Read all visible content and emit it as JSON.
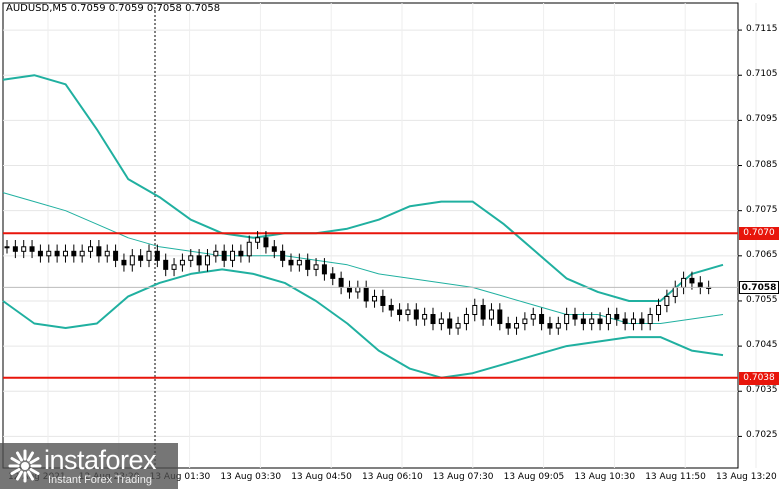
{
  "header": {
    "symbol_timeframe": "AUDUSD,M5",
    "ohlc": "0.7059 0.7059 0.7058 0.7058"
  },
  "watermark": {
    "brand": "instaforex",
    "tagline": "Instant Forex Trading",
    "logo_icon": "sunburst-logo-icon"
  },
  "price_tags": {
    "resistance": "0.7070",
    "support": "0.7038",
    "current": "0.7058"
  },
  "colors": {
    "band": "#20b0a0",
    "middle": "#20b0a0",
    "level": "#e8150b",
    "candle": "#000000"
  },
  "chart_data": {
    "type": "candlestick",
    "ylim": [
      0.7018,
      0.7121
    ],
    "y_ticks": [
      "0.7115",
      "0.7105",
      "0.7095",
      "0.7085",
      "0.7075",
      "0.7065",
      "0.7055",
      "0.7045",
      "0.7035",
      "0.7025"
    ],
    "x_ticks": [
      "12 Aug 2021",
      "12 Aug 23:20",
      "13 Aug 01:30",
      "13 Aug 03:30",
      "13 Aug 04:50",
      "13 Aug 06:10",
      "13 Aug 07:30",
      "13 Aug 09:05",
      "13 Aug 10:30",
      "13 Aug 11:50",
      "13 Aug 13:20"
    ],
    "horizontal_levels": [
      0.707,
      0.7038
    ],
    "current_price": 0.7058,
    "bollinger_upper": [
      0.7104,
      0.7105,
      0.7103,
      0.7093,
      0.7082,
      0.7078,
      0.7073,
      0.707,
      0.7069,
      0.707,
      0.707,
      0.7071,
      0.7073,
      0.7076,
      0.7077,
      0.7077,
      0.7072,
      0.7066,
      0.706,
      0.7057,
      0.7055,
      0.7055,
      0.7061,
      0.7063
    ],
    "bollinger_middle": [
      0.7079,
      0.7077,
      0.7075,
      0.7072,
      0.7069,
      0.7067,
      0.7066,
      0.7065,
      0.7065,
      0.7065,
      0.7064,
      0.7063,
      0.7061,
      0.706,
      0.7059,
      0.7058,
      0.7056,
      0.7054,
      0.7052,
      0.7052,
      0.705,
      0.705,
      0.7051,
      0.7052
    ],
    "bollinger_lower": [
      0.7055,
      0.705,
      0.7049,
      0.705,
      0.7056,
      0.7059,
      0.7061,
      0.7062,
      0.7061,
      0.7059,
      0.7055,
      0.705,
      0.7044,
      0.704,
      0.7038,
      0.7039,
      0.7041,
      0.7043,
      0.7045,
      0.7046,
      0.7047,
      0.7047,
      0.7044,
      0.7043
    ],
    "candles_close": [
      0.7067,
      0.7066,
      0.7067,
      0.7066,
      0.7065,
      0.7066,
      0.7065,
      0.7066,
      0.7065,
      0.7066,
      0.7067,
      0.7065,
      0.7066,
      0.7064,
      0.7063,
      0.7065,
      0.7064,
      0.7066,
      0.7064,
      0.7062,
      0.7063,
      0.7064,
      0.7065,
      0.7063,
      0.7065,
      0.7066,
      0.7064,
      0.7066,
      0.7065,
      0.7068,
      0.7069,
      0.7067,
      0.7066,
      0.7064,
      0.7063,
      0.7064,
      0.7062,
      0.7063,
      0.7061,
      0.706,
      0.7058,
      0.7057,
      0.7058,
      0.7055,
      0.7056,
      0.7054,
      0.7053,
      0.7052,
      0.7053,
      0.7051,
      0.7052,
      0.705,
      0.7051,
      0.7049,
      0.705,
      0.7052,
      0.7054,
      0.7051,
      0.7053,
      0.705,
      0.7049,
      0.705,
      0.7051,
      0.7052,
      0.705,
      0.7049,
      0.705,
      0.7052,
      0.7051,
      0.705,
      0.7051,
      0.705,
      0.7052,
      0.7051,
      0.705,
      0.7051,
      0.705,
      0.7052,
      0.7054,
      0.7056,
      0.7058,
      0.706,
      0.7059,
      0.7058,
      0.7058
    ]
  }
}
